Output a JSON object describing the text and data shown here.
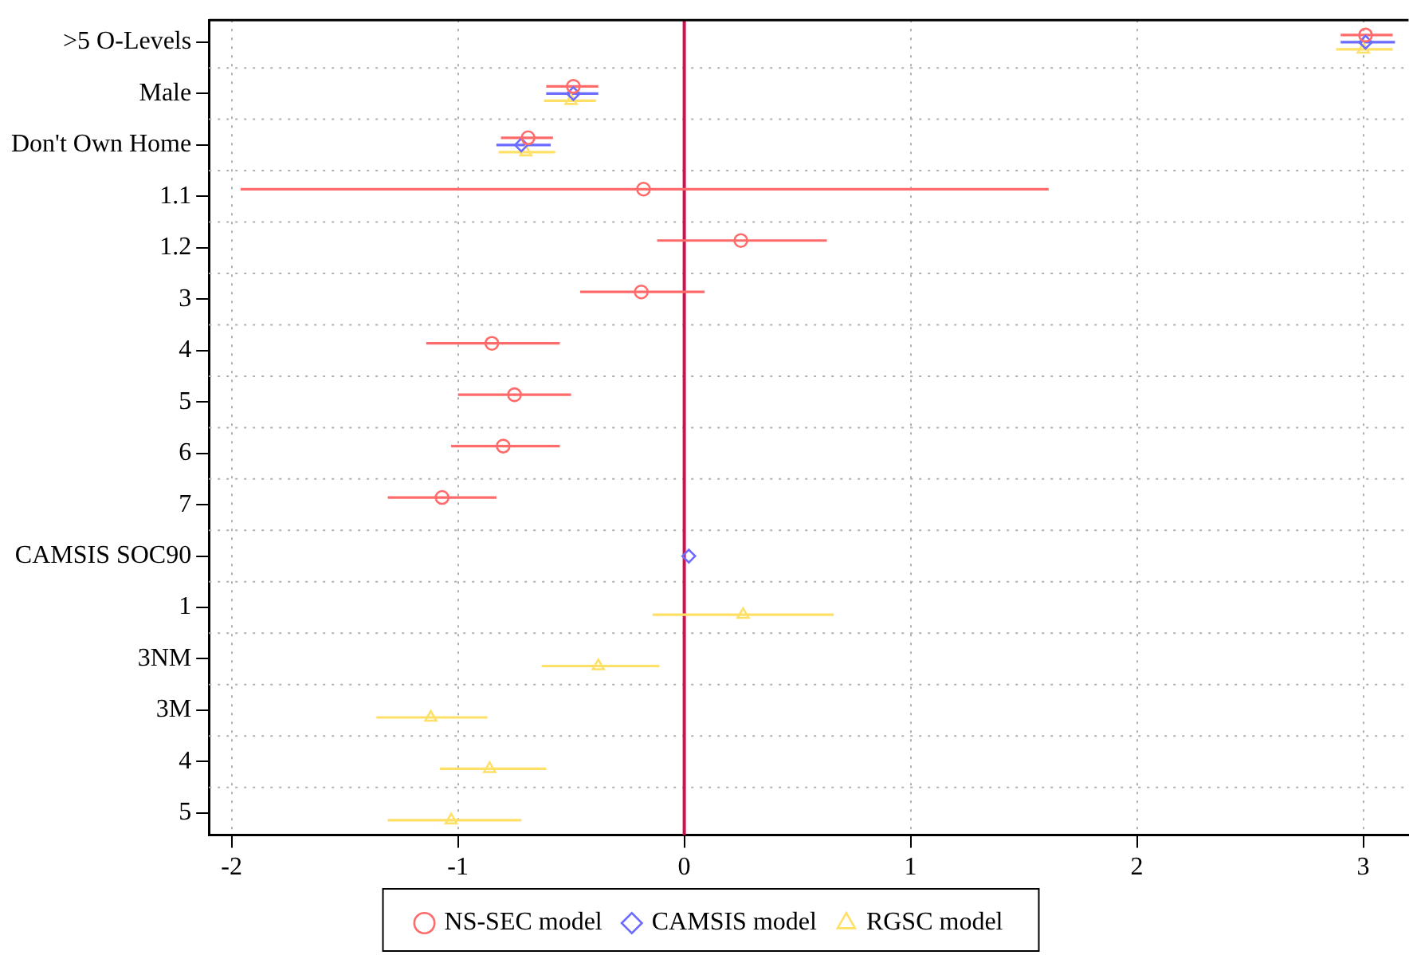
{
  "chart_data": {
    "type": "scatter",
    "orientation": "horizontal",
    "categories": [
      ">5 O-Levels",
      "Male",
      "Don't Own Home",
      "1.1",
      "1.2",
      "3",
      "4",
      "5",
      "6",
      "7",
      "CAMSIS SOC90",
      "1",
      "3NM",
      "3M",
      "4",
      "5"
    ],
    "series": [
      {
        "name": "NS-SEC model",
        "color": "#ff6b6b",
        "marker": "circle",
        "values": [
          3.01,
          -0.49,
          -0.69,
          -0.18,
          0.25,
          -0.19,
          -0.85,
          -0.75,
          -0.8,
          -1.07,
          null,
          null,
          null,
          null,
          null,
          null
        ],
        "errors": [
          [
            2.9,
            3.13
          ],
          [
            -0.61,
            -0.38
          ],
          [
            -0.81,
            -0.58
          ],
          [
            -1.96,
            1.61
          ],
          [
            -0.12,
            0.63
          ],
          [
            -0.46,
            0.09
          ],
          [
            -1.14,
            -0.55
          ],
          [
            -1.0,
            -0.5
          ],
          [
            -1.03,
            -0.55
          ],
          [
            -1.31,
            -0.83
          ],
          null,
          null,
          null,
          null,
          null,
          null
        ]
      },
      {
        "name": "CAMSIS model",
        "color": "#6b6bff",
        "marker": "diamond",
        "values": [
          3.01,
          -0.49,
          -0.72,
          null,
          null,
          null,
          null,
          null,
          null,
          null,
          0.02,
          null,
          null,
          null,
          null,
          null
        ],
        "errors": [
          [
            2.9,
            3.14
          ],
          [
            -0.61,
            -0.38
          ],
          [
            -0.83,
            -0.59
          ],
          null,
          null,
          null,
          null,
          null,
          null,
          null,
          null,
          null,
          null,
          null,
          null,
          null
        ]
      },
      {
        "name": "RGSC model",
        "color": "#ffe066",
        "marker": "triangle",
        "values": [
          3.0,
          -0.5,
          -0.7,
          null,
          null,
          null,
          null,
          null,
          null,
          null,
          null,
          0.26,
          -0.38,
          -1.12,
          -0.86,
          -1.03
        ],
        "errors": [
          [
            2.88,
            3.13
          ],
          [
            -0.62,
            -0.39
          ],
          [
            -0.82,
            -0.57
          ],
          null,
          null,
          null,
          null,
          null,
          null,
          null,
          null,
          [
            -0.14,
            0.66
          ],
          [
            -0.63,
            -0.11
          ],
          [
            -1.36,
            -0.87
          ],
          [
            -1.08,
            -0.61
          ],
          [
            -1.31,
            -0.72
          ]
        ]
      }
    ],
    "xlim": [
      -2.1,
      3.2
    ],
    "xticks": [
      -2,
      -1,
      0,
      1,
      2,
      3
    ],
    "ref_lines": [
      {
        "axis": "x",
        "value": 0,
        "color": "#d0104c"
      }
    ],
    "grid": true,
    "legend": "bottom"
  }
}
